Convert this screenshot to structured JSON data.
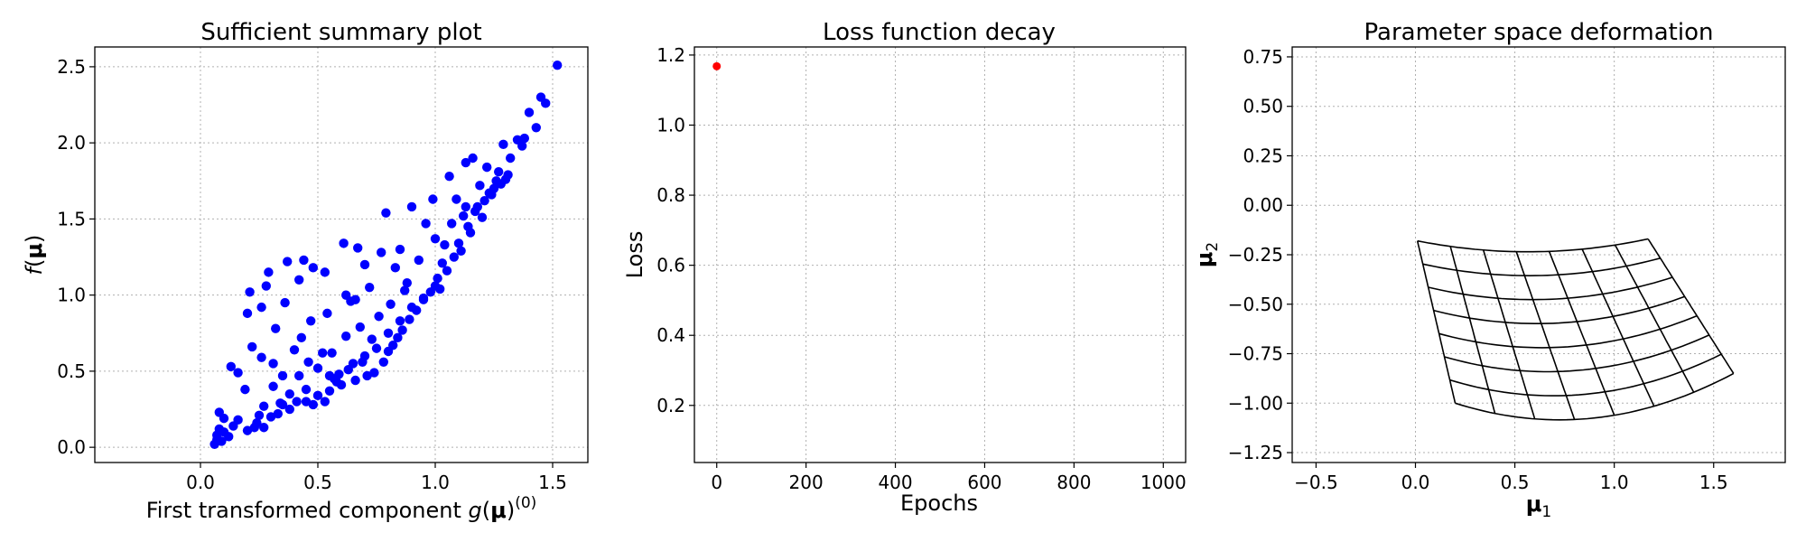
{
  "colors": {
    "scatter": "#0000ff",
    "loss_point": "#ff0000",
    "mesh": "#000000",
    "grid": "#b0b0b0"
  },
  "chart_data": [
    {
      "type": "scatter",
      "title": "Sufficient summary plot",
      "xlabel_text": "First transformed component ",
      "xlabel_math": "g(μ)",
      "xlabel_sup": "(0)",
      "ylabel_math": "f(μ)",
      "xlim": [
        -0.45,
        1.65
      ],
      "ylim": [
        -0.1,
        2.63
      ],
      "xticks": [
        0.0,
        0.5,
        1.0,
        1.5
      ],
      "xtick_labels": [
        "0.0",
        "0.5",
        "1.0",
        "1.5"
      ],
      "yticks": [
        0.0,
        0.5,
        1.0,
        1.5,
        2.0,
        2.5
      ],
      "ytick_labels": [
        "0.0",
        "0.5",
        "1.0",
        "1.5",
        "2.0",
        "2.5"
      ],
      "grid": true,
      "points": [
        [
          0.06,
          0.02
        ],
        [
          0.07,
          0.05
        ],
        [
          0.07,
          0.08
        ],
        [
          0.08,
          0.12
        ],
        [
          0.09,
          0.04
        ],
        [
          0.1,
          0.1
        ],
        [
          0.12,
          0.07
        ],
        [
          0.08,
          0.23
        ],
        [
          0.1,
          0.19
        ],
        [
          0.14,
          0.14
        ],
        [
          0.16,
          0.18
        ],
        [
          0.13,
          0.53
        ],
        [
          0.16,
          0.49
        ],
        [
          0.19,
          0.38
        ],
        [
          0.2,
          0.88
        ],
        [
          0.21,
          1.02
        ],
        [
          0.22,
          0.66
        ],
        [
          0.23,
          0.13
        ],
        [
          0.24,
          0.16
        ],
        [
          0.25,
          0.21
        ],
        [
          0.26,
          0.59
        ],
        [
          0.26,
          0.92
        ],
        [
          0.27,
          0.27
        ],
        [
          0.28,
          1.06
        ],
        [
          0.29,
          1.15
        ],
        [
          0.3,
          0.2
        ],
        [
          0.31,
          0.55
        ],
        [
          0.32,
          0.78
        ],
        [
          0.33,
          0.22
        ],
        [
          0.34,
          0.29
        ],
        [
          0.35,
          0.47
        ],
        [
          0.36,
          0.95
        ],
        [
          0.37,
          1.22
        ],
        [
          0.38,
          0.25
        ],
        [
          0.4,
          0.64
        ],
        [
          0.41,
          0.3
        ],
        [
          0.42,
          1.1
        ],
        [
          0.43,
          0.72
        ],
        [
          0.44,
          1.23
        ],
        [
          0.45,
          0.3
        ],
        [
          0.46,
          0.56
        ],
        [
          0.47,
          0.83
        ],
        [
          0.48,
          1.18
        ],
        [
          0.5,
          0.34
        ],
        [
          0.5,
          0.52
        ],
        [
          0.52,
          0.62
        ],
        [
          0.53,
          1.15
        ],
        [
          0.54,
          0.88
        ],
        [
          0.55,
          0.37
        ],
        [
          0.56,
          0.62
        ],
        [
          0.57,
          0.45
        ],
        [
          0.59,
          0.48
        ],
        [
          0.6,
          0.41
        ],
        [
          0.61,
          1.34
        ],
        [
          0.62,
          0.73
        ],
        [
          0.62,
          1.0
        ],
        [
          0.63,
          0.51
        ],
        [
          0.64,
          0.96
        ],
        [
          0.66,
          0.44
        ],
        [
          0.67,
          1.31
        ],
        [
          0.68,
          0.79
        ],
        [
          0.69,
          0.56
        ],
        [
          0.7,
          1.2
        ],
        [
          0.71,
          0.47
        ],
        [
          0.72,
          1.05
        ],
        [
          0.73,
          0.71
        ],
        [
          0.74,
          0.49
        ],
        [
          0.76,
          0.86
        ],
        [
          0.77,
          1.28
        ],
        [
          0.78,
          0.56
        ],
        [
          0.79,
          1.54
        ],
        [
          0.8,
          0.63
        ],
        [
          0.81,
          0.94
        ],
        [
          0.82,
          0.67
        ],
        [
          0.83,
          1.18
        ],
        [
          0.84,
          0.72
        ],
        [
          0.85,
          1.3
        ],
        [
          0.86,
          0.77
        ],
        [
          0.88,
          1.08
        ],
        [
          0.89,
          0.84
        ],
        [
          0.9,
          1.58
        ],
        [
          0.92,
          0.9
        ],
        [
          0.93,
          1.23
        ],
        [
          0.95,
          0.98
        ],
        [
          0.96,
          1.47
        ],
        [
          0.98,
          1.02
        ],
        [
          0.99,
          1.63
        ],
        [
          1.0,
          1.37
        ],
        [
          1.01,
          1.11
        ],
        [
          1.02,
          1.04
        ],
        [
          1.03,
          1.21
        ],
        [
          1.05,
          1.16
        ],
        [
          1.06,
          1.78
        ],
        [
          1.07,
          1.47
        ],
        [
          1.08,
          1.25
        ],
        [
          1.09,
          1.63
        ],
        [
          1.1,
          1.34
        ],
        [
          1.11,
          1.29
        ],
        [
          1.12,
          1.52
        ],
        [
          1.13,
          1.87
        ],
        [
          1.14,
          1.45
        ],
        [
          1.15,
          1.41
        ],
        [
          1.16,
          1.9
        ],
        [
          1.17,
          1.55
        ],
        [
          1.18,
          1.58
        ],
        [
          1.19,
          1.72
        ],
        [
          1.2,
          1.51
        ],
        [
          1.21,
          1.62
        ],
        [
          1.22,
          1.84
        ],
        [
          1.23,
          1.67
        ],
        [
          1.24,
          1.66
        ],
        [
          1.25,
          1.7
        ],
        [
          1.26,
          1.75
        ],
        [
          1.27,
          1.81
        ],
        [
          1.28,
          1.73
        ],
        [
          1.29,
          1.99
        ],
        [
          1.3,
          1.76
        ],
        [
          1.31,
          1.79
        ],
        [
          1.32,
          1.9
        ],
        [
          1.35,
          2.02
        ],
        [
          1.37,
          1.98
        ],
        [
          1.38,
          2.03
        ],
        [
          1.4,
          2.2
        ],
        [
          1.43,
          2.1
        ],
        [
          1.45,
          2.3
        ],
        [
          1.47,
          2.26
        ],
        [
          1.52,
          2.51
        ],
        [
          0.95,
          0.97
        ],
        [
          0.9,
          0.92
        ],
        [
          0.85,
          0.83
        ],
        [
          0.75,
          0.65
        ],
        [
          0.65,
          0.55
        ],
        [
          0.55,
          0.47
        ],
        [
          0.45,
          0.38
        ],
        [
          0.35,
          0.28
        ],
        [
          0.58,
          0.43
        ],
        [
          0.7,
          0.6
        ],
        [
          0.8,
          0.75
        ],
        [
          1.0,
          1.06
        ],
        [
          0.48,
          0.28
        ],
        [
          0.38,
          0.35
        ],
        [
          0.27,
          0.13
        ],
        [
          0.2,
          0.11
        ],
        [
          0.31,
          0.4
        ],
        [
          0.42,
          0.47
        ],
        [
          0.53,
          0.3
        ],
        [
          0.66,
          0.97
        ],
        [
          0.87,
          1.03
        ],
        [
          1.04,
          1.33
        ],
        [
          1.13,
          1.58
        ]
      ]
    },
    {
      "type": "line",
      "title": "Loss function decay",
      "xlabel": "Epochs",
      "ylabel": "Loss",
      "xlim": [
        -50,
        1050
      ],
      "ylim": [
        0.037,
        1.223
      ],
      "xticks": [
        0,
        200,
        400,
        600,
        800,
        1000
      ],
      "xtick_labels": [
        "0",
        "200",
        "400",
        "600",
        "800",
        "1000"
      ],
      "yticks": [
        0.2,
        0.4,
        0.6,
        0.8,
        1.0,
        1.2
      ],
      "ytick_labels": [
        "0.2",
        "0.4",
        "0.6",
        "0.8",
        "1.0",
        "1.2"
      ],
      "grid": true,
      "points": [
        [
          0,
          1.168
        ]
      ]
    },
    {
      "type": "mesh",
      "title": "Parameter space deformation",
      "xlabel_sym": "μ",
      "xlabel_sub": "1",
      "ylabel_sym": "μ",
      "ylabel_sub": "2",
      "xlim": [
        -0.62,
        1.86
      ],
      "ylim": [
        -1.3,
        0.8
      ],
      "xticks": [
        -0.5,
        0.0,
        0.5,
        1.0,
        1.5
      ],
      "xtick_labels": [
        "−0.5",
        "0.0",
        "0.5",
        "1.0",
        "1.5"
      ],
      "yticks": [
        -1.25,
        -1.0,
        -0.75,
        -0.5,
        -0.25,
        0.0,
        0.25,
        0.5,
        0.75
      ],
      "ytick_labels": [
        "−1.25",
        "−1.00",
        "−0.75",
        "−0.50",
        "−0.25",
        "0.00",
        "0.25",
        "0.50",
        "0.75"
      ],
      "grid": true,
      "corners": {
        "top_left": [
          0.01,
          -0.18
        ],
        "top_right": [
          1.17,
          -0.17
        ],
        "bottom_left": [
          0.2,
          -1.0
        ],
        "bottom_right": [
          1.6,
          -0.85
        ]
      },
      "sag_top": 0.06,
      "sag_bottom": 0.15,
      "divisions": [
        7,
        7
      ]
    }
  ]
}
